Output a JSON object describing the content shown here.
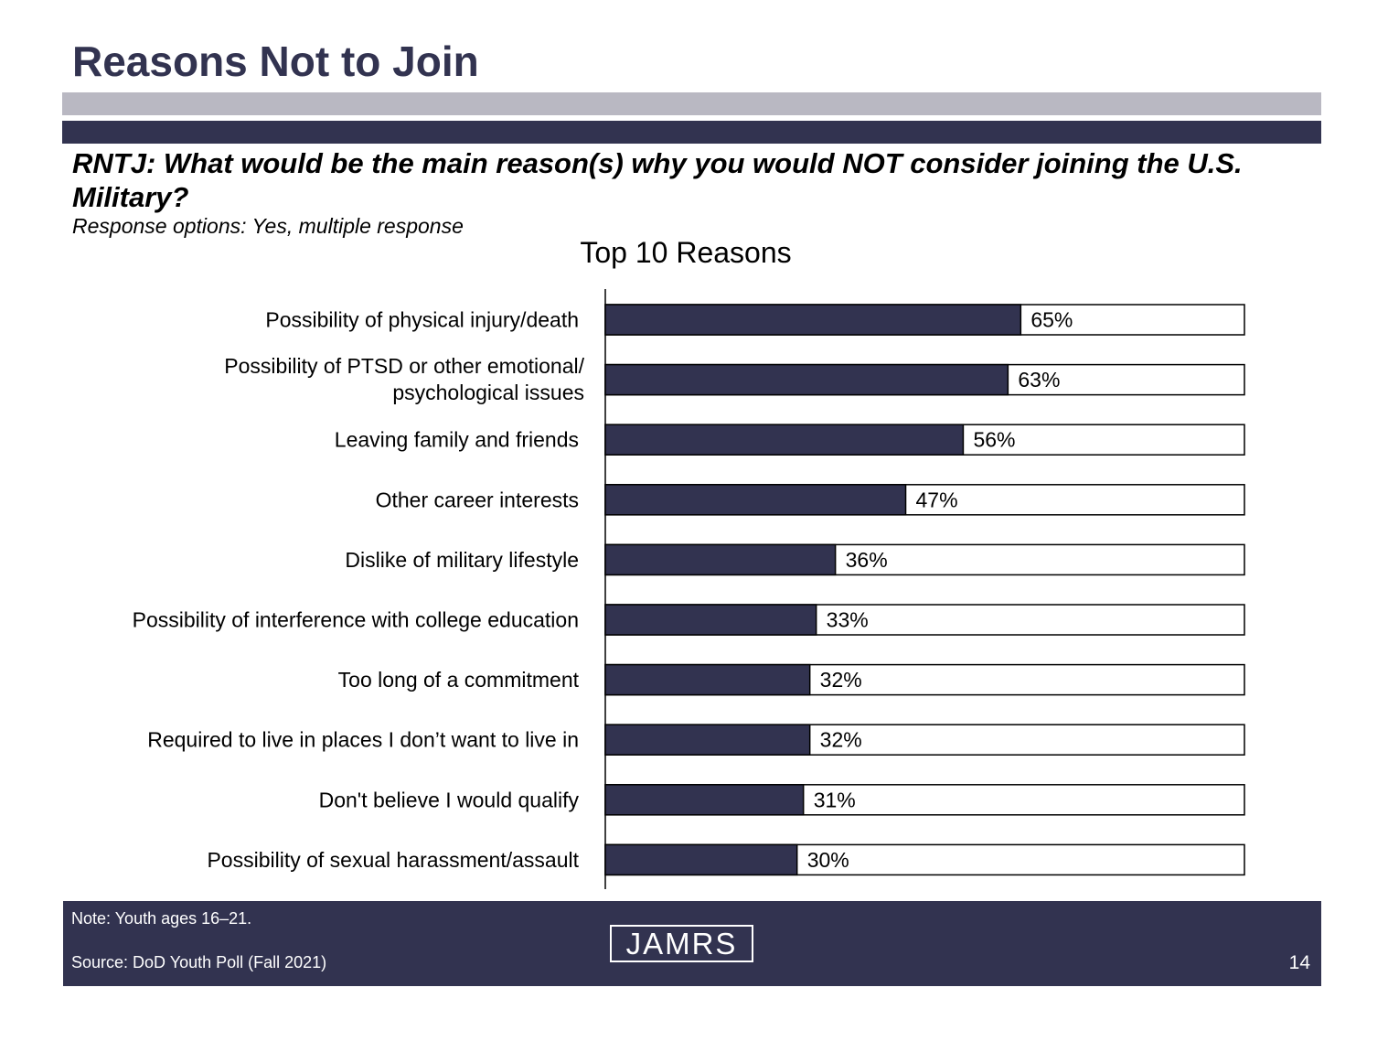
{
  "slide": {
    "title": "Reasons Not to Join",
    "question": "RNTJ:  What would be the main reason(s) why you would NOT consider joining the U.S. Military?",
    "response_options": "Response options:  Yes, multiple response"
  },
  "footer": {
    "note": "Note:  Youth ages 16–21.",
    "source": "Source:  DoD Youth Poll (Fall 2021)",
    "logo_text": "JAMRS",
    "page_number": "14"
  },
  "colors": {
    "navy": "#323350",
    "gray_band": "#b9b8c2",
    "bar_remainder": "#ffffff"
  },
  "chart_data": {
    "type": "bar",
    "orientation": "horizontal",
    "title": "Top 10 Reasons",
    "categories": [
      "Possibility of physical injury/death",
      "Possibility of PTSD or other emotional/ psychological issues",
      "Leaving family and friends",
      "Other career interests",
      "Dislike of military lifestyle",
      "Possibility of interference with college education",
      "Too long of a commitment",
      "Required to live in places I don’t want to live in",
      "Don't believe I would qualify",
      "Possibility of sexual harassment/assault"
    ],
    "values": [
      65,
      63,
      56,
      47,
      36,
      33,
      32,
      32,
      31,
      30
    ],
    "data_labels": [
      "65%",
      "63%",
      "56%",
      "47%",
      "36%",
      "33%",
      "32%",
      "32%",
      "31%",
      "30%"
    ],
    "xlim": [
      0,
      100
    ],
    "grid": false,
    "legend": "none"
  }
}
